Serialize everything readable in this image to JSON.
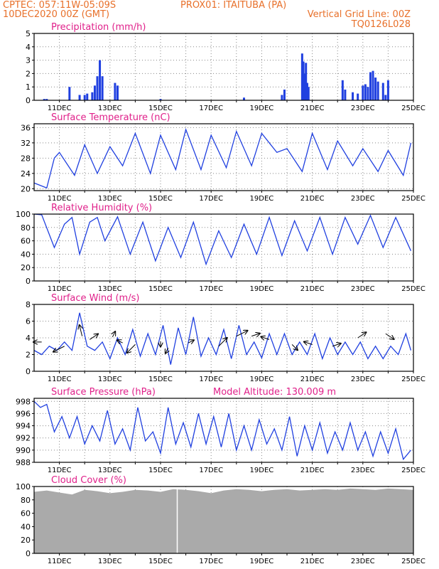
{
  "header": {
    "line1": "CPTEC:   057:11W-05:09S",
    "line2": "10DEC2020 00Z (GMT)",
    "station": "PROX01: ITAITUBA (PA)",
    "grid_note": "Vertical Grid Line: 00Z",
    "code": "TQ0126L028"
  },
  "colors": {
    "header": "#e8702a",
    "title": "#e0208a",
    "series": "#2040e0",
    "cloud": "#aaaaaa",
    "grid": "#888888"
  },
  "x_axis": {
    "ticks": [
      "11DEC",
      "13DEC",
      "15DEC",
      "17DEC",
      "19DEC",
      "21DEC",
      "23DEC",
      "25DEC"
    ],
    "start": "10DEC2020 00Z",
    "end": "25DEC2020 00Z",
    "days": 15
  },
  "chart_data": [
    {
      "type": "bar",
      "title": "Precipitation (mm/h)",
      "ylim": [
        0,
        5
      ],
      "yticks": [
        "0",
        "1",
        "2",
        "3",
        "4",
        "5"
      ],
      "x": [
        0.4,
        0.5,
        1.4,
        1.8,
        2.0,
        2.1,
        2.3,
        2.4,
        2.5,
        2.6,
        2.7,
        3.2,
        3.3,
        5.0,
        8.3,
        9.8,
        9.9,
        10.6,
        10.65,
        10.7,
        10.75,
        10.8,
        10.85,
        12.2,
        12.3,
        12.6,
        12.8,
        13.0,
        13.1,
        13.2,
        13.3,
        13.4,
        13.5,
        13.6,
        13.8,
        13.9,
        14.0
      ],
      "values": [
        0.1,
        0.1,
        1.0,
        0.4,
        0.4,
        0.5,
        0.6,
        1.1,
        1.8,
        3.0,
        1.8,
        1.3,
        1.1,
        0.1,
        0.2,
        0.4,
        0.8,
        3.5,
        2.9,
        2.0,
        2.8,
        1.3,
        1.0,
        1.5,
        0.8,
        0.6,
        0.5,
        1.1,
        1.2,
        1.0,
        2.1,
        2.2,
        1.7,
        1.4,
        1.3,
        0.4,
        1.5
      ]
    },
    {
      "type": "line",
      "title": "Surface Temperature (nC)",
      "ylim": [
        19.5,
        37
      ],
      "yticks": [
        "20",
        "24",
        "28",
        "32",
        "36"
      ],
      "x": [
        0.0,
        0.5,
        0.8,
        1.0,
        1.6,
        2.0,
        2.5,
        3.0,
        3.5,
        4.0,
        4.6,
        5.0,
        5.6,
        6.0,
        6.6,
        7.0,
        7.6,
        8.0,
        8.6,
        9.0,
        9.6,
        10.0,
        10.6,
        11.0,
        11.6,
        12.0,
        12.6,
        13.0,
        13.6,
        14.0,
        14.6,
        14.9
      ],
      "values": [
        21.5,
        20.2,
        28.0,
        29.5,
        23.5,
        31.5,
        24.0,
        31.0,
        26.0,
        34.5,
        24.0,
        34.0,
        25.0,
        35.5,
        25.0,
        34.0,
        25.5,
        35.0,
        26.0,
        34.5,
        29.5,
        30.5,
        24.5,
        34.5,
        25.0,
        32.5,
        26.0,
        30.5,
        24.5,
        30.0,
        23.5,
        32.0
      ]
    },
    {
      "type": "line",
      "title": "Relative Humidity (%)",
      "ylim": [
        0,
        100
      ],
      "yticks": [
        "0",
        "20",
        "40",
        "60",
        "80",
        "100"
      ],
      "x": [
        0.0,
        0.3,
        0.8,
        1.2,
        1.5,
        1.8,
        2.2,
        2.5,
        2.8,
        3.3,
        3.8,
        4.3,
        4.8,
        5.3,
        5.8,
        6.3,
        6.8,
        7.3,
        7.8,
        8.3,
        8.8,
        9.3,
        9.8,
        10.3,
        10.8,
        11.3,
        11.8,
        12.3,
        12.8,
        13.3,
        13.8,
        14.3,
        14.9
      ],
      "values": [
        100,
        99,
        50,
        85,
        95,
        40,
        88,
        95,
        60,
        96,
        40,
        88,
        30,
        80,
        35,
        88,
        25,
        75,
        35,
        85,
        40,
        95,
        38,
        90,
        45,
        95,
        40,
        95,
        55,
        98,
        50,
        95,
        45
      ]
    },
    {
      "type": "line",
      "title": "Surface Wind (m/s)",
      "ylim": [
        0,
        8
      ],
      "yticks": [
        "0",
        "2",
        "4",
        "6",
        "8"
      ],
      "x": [
        0.0,
        0.3,
        0.6,
        0.9,
        1.2,
        1.5,
        1.8,
        2.1,
        2.4,
        2.7,
        3.0,
        3.3,
        3.6,
        3.9,
        4.2,
        4.5,
        4.8,
        5.1,
        5.4,
        5.7,
        6.0,
        6.3,
        6.6,
        6.9,
        7.2,
        7.5,
        7.8,
        8.1,
        8.4,
        8.7,
        9.0,
        9.3,
        9.6,
        9.9,
        10.2,
        10.5,
        10.8,
        11.1,
        11.4,
        11.7,
        12.0,
        12.3,
        12.6,
        12.9,
        13.2,
        13.5,
        13.8,
        14.1,
        14.4,
        14.7,
        14.9
      ],
      "values": [
        2.5,
        2.0,
        3.0,
        2.5,
        3.5,
        2.5,
        7.0,
        3.0,
        2.5,
        3.5,
        1.5,
        4.0,
        2.0,
        5.0,
        1.8,
        4.5,
        2.0,
        5.5,
        0.8,
        5.2,
        2.0,
        6.5,
        1.8,
        4.0,
        2.0,
        5.0,
        1.5,
        5.5,
        2.0,
        3.5,
        1.6,
        4.5,
        2.0,
        4.5,
        2.0,
        3.5,
        2.0,
        4.5,
        1.5,
        4.0,
        2.0,
        3.5,
        2.0,
        3.5,
        1.5,
        3.0,
        1.5,
        3.0,
        2.0,
        4.5,
        2.5
      ],
      "arrows": [
        {
          "x": 0.3,
          "y": 3.5,
          "u": -3,
          "v": 0
        },
        {
          "x": 1.2,
          "y": 3.0,
          "u": -4,
          "v": -2
        },
        {
          "x": 1.9,
          "y": 4.2,
          "u": -1,
          "v": 4
        },
        {
          "x": 2.2,
          "y": 3.8,
          "u": 3,
          "v": 2
        },
        {
          "x": 3.1,
          "y": 4.1,
          "u": 1,
          "v": 2
        },
        {
          "x": 3.5,
          "y": 3.4,
          "u": -2,
          "v": 1
        },
        {
          "x": 4.0,
          "y": 3.2,
          "u": -3,
          "v": -3
        },
        {
          "x": 5.0,
          "y": 3.6,
          "u": 0,
          "v": -2
        },
        {
          "x": 5.3,
          "y": 2.8,
          "u": -1,
          "v": -2
        },
        {
          "x": 6.1,
          "y": 3.4,
          "u": 2,
          "v": 1
        },
        {
          "x": 7.3,
          "y": 3.0,
          "u": 3,
          "v": 3
        },
        {
          "x": 8.0,
          "y": 4.2,
          "u": 4,
          "v": 2
        },
        {
          "x": 8.6,
          "y": 4.2,
          "u": 3,
          "v": 1
        },
        {
          "x": 9.3,
          "y": 3.8,
          "u": -3,
          "v": 1
        },
        {
          "x": 10.2,
          "y": 3.2,
          "u": 2,
          "v": -2
        },
        {
          "x": 11.0,
          "y": 3.2,
          "u": -3,
          "v": 1
        },
        {
          "x": 11.8,
          "y": 3.0,
          "u": 3,
          "v": 1
        },
        {
          "x": 12.8,
          "y": 4.0,
          "u": 3,
          "v": 2
        },
        {
          "x": 13.9,
          "y": 4.5,
          "u": 3,
          "v": -2
        }
      ]
    },
    {
      "type": "line",
      "title": "Surface Pressure (hPa)",
      "annotation": "Model Altitude: 130.009 m",
      "ylim": [
        988,
        998.5
      ],
      "yticks": [
        "988",
        "990",
        "992",
        "994",
        "996",
        "998"
      ],
      "x": [
        0.0,
        0.25,
        0.5,
        0.8,
        1.1,
        1.4,
        1.7,
        2.0,
        2.3,
        2.6,
        2.9,
        3.2,
        3.5,
        3.8,
        4.1,
        4.4,
        4.7,
        5.0,
        5.3,
        5.6,
        5.9,
        6.2,
        6.5,
        6.8,
        7.1,
        7.4,
        7.7,
        8.0,
        8.3,
        8.6,
        8.9,
        9.2,
        9.5,
        9.8,
        10.1,
        10.4,
        10.7,
        11.0,
        11.3,
        11.6,
        11.9,
        12.2,
        12.5,
        12.8,
        13.1,
        13.4,
        13.7,
        14.0,
        14.3,
        14.6,
        14.9
      ],
      "values": [
        998,
        997,
        997.5,
        993,
        995.5,
        992,
        995.5,
        991,
        994,
        991.5,
        996.5,
        991,
        993.5,
        990,
        997,
        991.5,
        993,
        989.5,
        997,
        991,
        994.5,
        990.5,
        996,
        991,
        995.5,
        990.5,
        996,
        990,
        994,
        990,
        995,
        991,
        993.5,
        990,
        995.5,
        989,
        994,
        990,
        994.5,
        989.5,
        993,
        990,
        994.5,
        990,
        993,
        989,
        993,
        989.5,
        993.5,
        988.5,
        990
      ]
    },
    {
      "type": "area",
      "title": "Cloud Cover (%)",
      "ylim": [
        0,
        100
      ],
      "yticks": [
        "0",
        "20",
        "40",
        "60",
        "80",
        "100"
      ],
      "x": [
        0.0,
        0.5,
        1.0,
        1.5,
        2.0,
        2.5,
        3.0,
        3.5,
        4.0,
        4.5,
        5.0,
        5.5,
        6.0,
        6.5,
        7.0,
        7.5,
        8.0,
        8.5,
        9.0,
        9.5,
        10.0,
        10.5,
        11.0,
        11.5,
        12.0,
        12.5,
        13.0,
        13.5,
        14.0,
        14.5,
        15.0
      ],
      "values": [
        92,
        94,
        91,
        88,
        95,
        93,
        90,
        92,
        95,
        94,
        92,
        96,
        95,
        93,
        90,
        94,
        96,
        95,
        93,
        95,
        96,
        94,
        95,
        96,
        95,
        97,
        96,
        95,
        97,
        96,
        95
      ]
    }
  ]
}
